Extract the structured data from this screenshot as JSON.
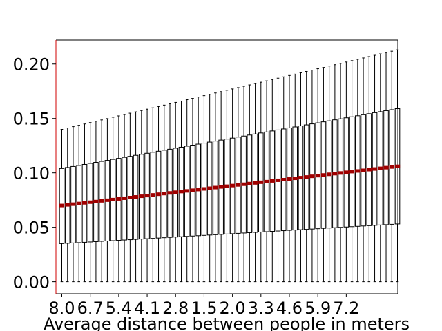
{
  "chart_data": {
    "type": "box",
    "title": "",
    "xlabel": "Average distance between people in meters",
    "ylabel": "",
    "ylim": [
      -0.011,
      0.222
    ],
    "yticks": [
      0.0,
      0.05,
      0.1,
      0.15,
      0.2
    ],
    "ytick_labels": [
      "0.00",
      "0.05",
      "0.10",
      "0.15",
      "0.20"
    ],
    "x_tick_labels": [
      "8.0",
      "6.7",
      "5.4",
      "4.1",
      "2.8",
      "1.5",
      "2.0",
      "3.3",
      "4.6",
      "5.9",
      "7.2"
    ],
    "n_boxes": 60,
    "box_count_visible": 60,
    "whisker_low": 0.0,
    "first_box": {
      "q1": 0.035,
      "median": 0.07,
      "q3": 0.104,
      "whisker_high": 0.14
    },
    "last_box": {
      "q1": 0.053,
      "median": 0.106,
      "q3": 0.159,
      "whisker_high": 0.213
    },
    "grid": false,
    "colors": {
      "box": "#000000",
      "median": "#a00000",
      "axis_left": "#d00000",
      "frame": "#000000"
    }
  }
}
